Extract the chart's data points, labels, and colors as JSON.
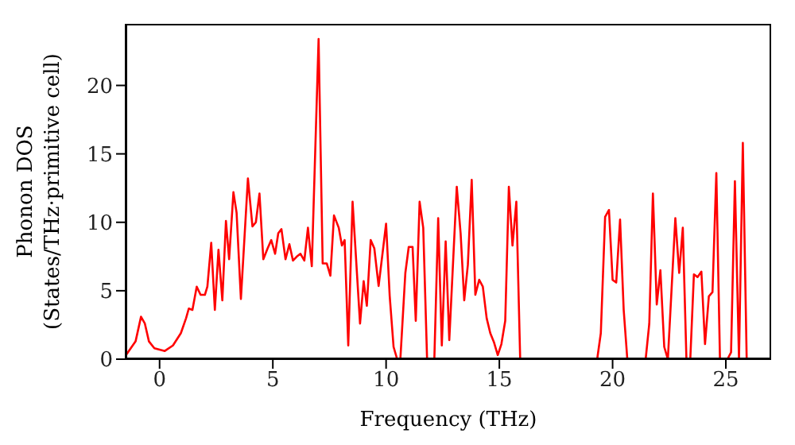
{
  "chart_data": {
    "type": "line",
    "xlabel": "Frequency (THz)",
    "ylabel": "Phonon DOS\n(States/THz·primitive cell)",
    "xlim": [
      -1.5,
      27
    ],
    "xticks": [
      0,
      5,
      10,
      15,
      20,
      25
    ],
    "ylim": [
      0,
      24.5
    ],
    "yticks": [
      0,
      5,
      10,
      15,
      20
    ],
    "grid": false,
    "legend": false,
    "marker": "none",
    "line_style": "solid",
    "x": [
      -1.48,
      -1.06,
      -0.82,
      -0.65,
      -0.47,
      -0.23,
      0.23,
      0.59,
      0.94,
      1.17,
      1.29,
      1.45,
      1.64,
      1.81,
      2.0,
      2.11,
      2.28,
      2.44,
      2.6,
      2.77,
      2.93,
      3.07,
      3.26,
      3.4,
      3.59,
      3.9,
      4.1,
      4.25,
      4.41,
      4.58,
      4.77,
      4.93,
      5.1,
      5.24,
      5.38,
      5.56,
      5.73,
      5.89,
      6.06,
      6.22,
      6.39,
      6.55,
      6.72,
      7.02,
      7.2,
      7.38,
      7.54,
      7.7,
      7.91,
      8.05,
      8.17,
      8.33,
      8.52,
      8.85,
      9.01,
      9.15,
      9.32,
      9.48,
      9.67,
      10.0,
      10.16,
      10.33,
      10.49,
      10.63,
      10.85,
      11.0,
      11.17,
      11.31,
      11.48,
      11.64,
      11.81,
      12.13,
      12.3,
      12.46,
      12.63,
      12.79,
      13.12,
      13.29,
      13.45,
      13.61,
      13.78,
      13.94,
      14.11,
      14.27,
      14.44,
      14.6,
      14.77,
      14.93,
      15.09,
      15.26,
      15.42,
      15.58,
      15.75,
      15.92,
      19.32,
      19.48,
      19.67,
      19.84,
      20.0,
      20.16,
      20.33,
      20.49,
      20.65,
      21.46,
      21.62,
      21.78,
      21.95,
      22.11,
      22.28,
      22.44,
      22.77,
      22.94,
      23.1,
      23.26,
      23.43,
      23.59,
      23.75,
      23.92,
      24.08,
      24.25,
      24.41,
      24.58,
      24.74,
      25.07,
      25.23,
      25.4,
      25.58,
      25.75,
      25.92,
      27
    ],
    "series": [
      {
        "color": "#ff0000",
        "values": [
          0.3,
          1.3,
          3.1,
          2.6,
          1.3,
          0.8,
          0.6,
          1.0,
          1.9,
          3.0,
          3.7,
          3.6,
          5.3,
          4.7,
          4.7,
          5.3,
          8.5,
          3.6,
          8.0,
          4.3,
          10.1,
          7.3,
          12.2,
          10.7,
          4.4,
          13.2,
          9.7,
          10.0,
          12.1,
          7.3,
          8.1,
          8.7,
          7.7,
          9.2,
          9.5,
          7.3,
          8.4,
          7.2,
          7.5,
          7.7,
          7.2,
          9.6,
          6.8,
          23.4,
          7.0,
          7.0,
          6.1,
          10.5,
          9.6,
          8.3,
          8.7,
          1.0,
          11.5,
          2.6,
          5.7,
          3.9,
          8.7,
          8.1,
          5.35,
          9.9,
          4.6,
          0.9,
          0,
          0,
          6.3,
          8.2,
          8.2,
          2.8,
          11.5,
          9.6,
          0,
          0,
          10.3,
          1.0,
          8.6,
          1.4,
          12.6,
          9.2,
          4.3,
          6.9,
          13.1,
          4.7,
          5.8,
          5.3,
          3.0,
          1.9,
          1.2,
          0.3,
          1.1,
          2.8,
          12.6,
          8.3,
          11.5,
          0,
          0,
          1.9,
          10.4,
          10.9,
          5.8,
          5.6,
          10.2,
          3.6,
          0,
          0,
          2.6,
          12.1,
          4.0,
          6.5,
          0.9,
          0,
          10.3,
          6.3,
          9.6,
          0,
          0,
          6.2,
          6.0,
          6.4,
          1.1,
          4.6,
          4.9,
          13.6,
          0,
          0,
          0.5,
          13.0,
          0,
          15.8,
          0,
          0
        ]
      }
    ]
  }
}
